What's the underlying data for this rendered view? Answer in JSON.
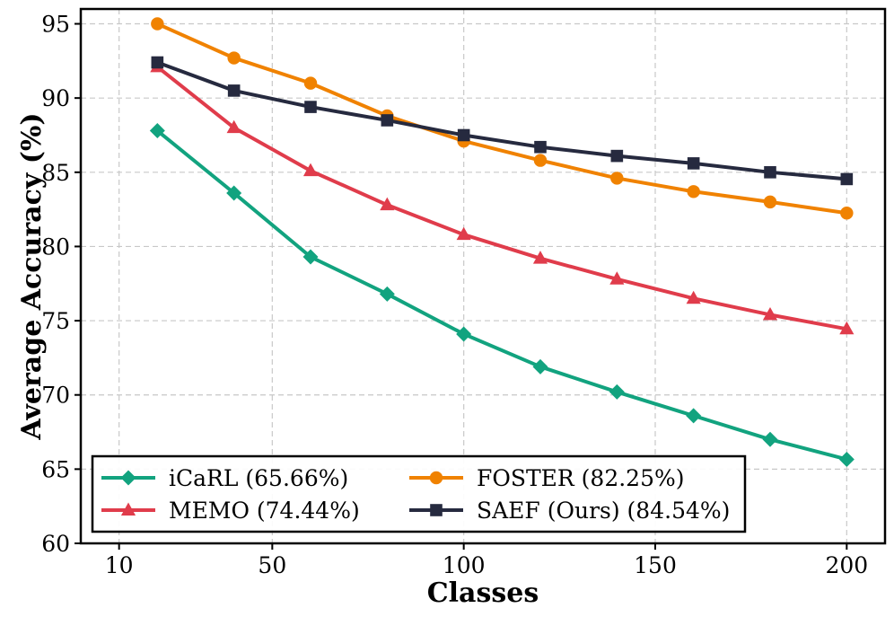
{
  "chart_data": {
    "type": "line",
    "xlabel": "Classes",
    "ylabel": "Average Accuracy (%)",
    "xlim": [
      0,
      210
    ],
    "ylim": [
      60,
      96
    ],
    "grid": true,
    "legend_position": "bottom-left",
    "x_ticks": [
      10,
      50,
      100,
      150,
      200
    ],
    "x_tick_labels": [
      "10",
      "50",
      "100",
      "150",
      "200"
    ],
    "y_ticks": [
      60,
      65,
      70,
      75,
      80,
      85,
      90,
      95
    ],
    "y_tick_labels": [
      "60",
      "65",
      "70",
      "75",
      "80",
      "85",
      "90",
      "95"
    ],
    "x": [
      20,
      40,
      60,
      80,
      100,
      120,
      140,
      160,
      180,
      200
    ],
    "series": [
      {
        "name": "iCaRL (65.66%)",
        "color": "#12a37f",
        "marker": "diamond",
        "values": [
          87.8,
          83.6,
          79.3,
          76.8,
          74.1,
          71.9,
          70.2,
          68.6,
          67.0,
          65.66
        ]
      },
      {
        "name": "FOSTER (82.25%)",
        "color": "#f08200",
        "marker": "circle",
        "values": [
          95.0,
          92.7,
          91.0,
          88.8,
          87.1,
          85.8,
          84.6,
          83.7,
          83.0,
          82.25
        ]
      },
      {
        "name": "MEMO (74.44%)",
        "color": "#e03c4b",
        "marker": "triangle",
        "values": [
          92.1,
          88.0,
          85.1,
          82.8,
          80.8,
          79.2,
          77.8,
          76.5,
          75.4,
          74.44
        ]
      },
      {
        "name": "SAEF (Ours) (84.54%)",
        "color": "#262a3f",
        "marker": "square",
        "values": [
          92.4,
          90.5,
          89.4,
          88.5,
          87.5,
          86.7,
          86.1,
          85.6,
          85.0,
          84.54
        ]
      }
    ]
  }
}
